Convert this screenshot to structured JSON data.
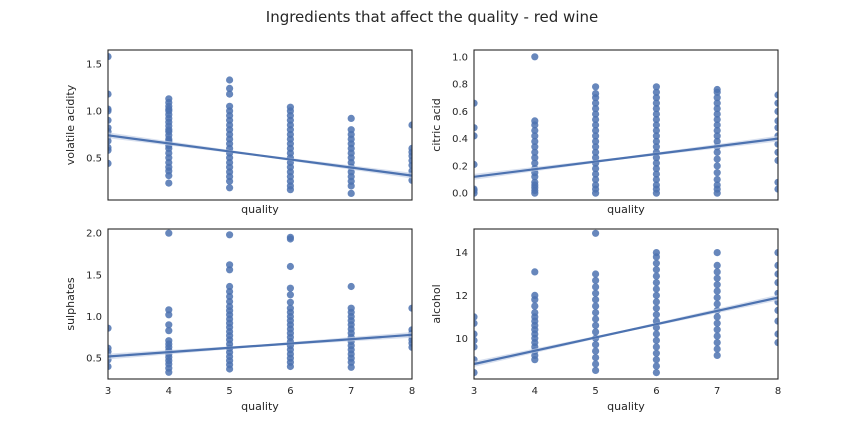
{
  "suptitle": "Ingredients that affect the quality - red wine",
  "colors": {
    "points": "#4c72b0",
    "line": "#4c72b0",
    "ci_band": "#c8d3e8",
    "axes": "#262626"
  },
  "chart_data": [
    {
      "type": "scatter",
      "xlabel": "quality",
      "ylabel": "volatile acidity",
      "xlim": [
        3,
        8
      ],
      "ylim": [
        0.05,
        1.65
      ],
      "yticks": [
        "0.5",
        "1.0",
        "1.5"
      ],
      "xticks": [],
      "regression": {
        "x": [
          3,
          8
        ],
        "y": [
          0.74,
          0.31
        ]
      },
      "groups": [
        {
          "x": 3,
          "y": [
            0.44,
            0.58,
            0.61,
            0.68,
            0.73,
            0.78,
            0.82,
            0.9,
            1.0,
            1.02,
            1.18,
            1.58
          ]
        },
        {
          "x": 4,
          "y": [
            0.23,
            0.31,
            0.36,
            0.4,
            0.45,
            0.5,
            0.55,
            0.6,
            0.63,
            0.66,
            0.68,
            0.7,
            0.74,
            0.78,
            0.8,
            0.84,
            0.88,
            0.92,
            0.96,
            1.0,
            1.02,
            1.05,
            1.09,
            1.13
          ]
        },
        {
          "x": 5,
          "y": [
            0.18,
            0.25,
            0.3,
            0.35,
            0.4,
            0.45,
            0.5,
            0.55,
            0.6,
            0.65,
            0.7,
            0.75,
            0.8,
            0.85,
            0.9,
            0.95,
            1.0,
            1.05,
            1.18,
            1.24,
            1.33
          ]
        },
        {
          "x": 6,
          "y": [
            0.16,
            0.2,
            0.25,
            0.3,
            0.35,
            0.4,
            0.45,
            0.5,
            0.55,
            0.6,
            0.65,
            0.7,
            0.75,
            0.8,
            0.85,
            0.9,
            0.95,
            1.0,
            1.04
          ]
        },
        {
          "x": 7,
          "y": [
            0.12,
            0.2,
            0.25,
            0.3,
            0.35,
            0.4,
            0.45,
            0.5,
            0.55,
            0.6,
            0.65,
            0.7,
            0.75,
            0.8,
            0.92
          ]
        },
        {
          "x": 8,
          "y": [
            0.26,
            0.32,
            0.36,
            0.42,
            0.47,
            0.52,
            0.56,
            0.6,
            0.85
          ]
        }
      ]
    },
    {
      "type": "scatter",
      "xlabel": "quality",
      "ylabel": "citric acid",
      "xlim": [
        3,
        8
      ],
      "ylim": [
        -0.05,
        1.05
      ],
      "yticks": [
        "0.0",
        "0.2",
        "0.4",
        "0.6",
        "0.8",
        "1.0"
      ],
      "xticks": [],
      "regression": {
        "x": [
          3,
          8
        ],
        "y": [
          0.12,
          0.4
        ]
      },
      "groups": [
        {
          "x": 3,
          "y": [
            0.0,
            0.02,
            0.03,
            0.21,
            0.42,
            0.48,
            0.66
          ]
        },
        {
          "x": 4,
          "y": [
            0.0,
            0.02,
            0.04,
            0.06,
            0.08,
            0.12,
            0.15,
            0.18,
            0.22,
            0.26,
            0.3,
            0.34,
            0.38,
            0.42,
            0.46,
            0.5,
            0.53,
            1.0
          ]
        },
        {
          "x": 5,
          "y": [
            0.0,
            0.03,
            0.06,
            0.1,
            0.14,
            0.18,
            0.22,
            0.26,
            0.3,
            0.34,
            0.38,
            0.42,
            0.46,
            0.5,
            0.54,
            0.58,
            0.62,
            0.66,
            0.7,
            0.73,
            0.78
          ]
        },
        {
          "x": 6,
          "y": [
            0.0,
            0.03,
            0.06,
            0.1,
            0.14,
            0.18,
            0.22,
            0.26,
            0.3,
            0.34,
            0.38,
            0.42,
            0.46,
            0.5,
            0.54,
            0.58,
            0.62,
            0.66,
            0.7,
            0.74,
            0.78
          ]
        },
        {
          "x": 7,
          "y": [
            0.0,
            0.03,
            0.06,
            0.1,
            0.15,
            0.2,
            0.25,
            0.3,
            0.34,
            0.38,
            0.42,
            0.46,
            0.5,
            0.54,
            0.58,
            0.62,
            0.66,
            0.7,
            0.74,
            0.76
          ]
        },
        {
          "x": 8,
          "y": [
            0.03,
            0.08,
            0.24,
            0.3,
            0.36,
            0.42,
            0.48,
            0.53,
            0.6,
            0.66,
            0.72
          ]
        }
      ]
    },
    {
      "type": "scatter",
      "xlabel": "quality",
      "ylabel": "sulphates",
      "xlim": [
        3,
        8
      ],
      "ylim": [
        0.25,
        2.05
      ],
      "yticks": [
        "0.5",
        "1.0",
        "1.5",
        "2.0"
      ],
      "xticks": [
        "3",
        "4",
        "5",
        "6",
        "7",
        "8"
      ],
      "regression": {
        "x": [
          3,
          8
        ],
        "y": [
          0.52,
          0.78
        ]
      },
      "groups": [
        {
          "x": 3,
          "y": [
            0.4,
            0.48,
            0.53,
            0.58,
            0.62,
            0.86
          ]
        },
        {
          "x": 4,
          "y": [
            0.33,
            0.38,
            0.43,
            0.47,
            0.51,
            0.55,
            0.59,
            0.63,
            0.67,
            0.71,
            0.83,
            0.9,
            1.02,
            1.08,
            2.0
          ]
        },
        {
          "x": 5,
          "y": [
            0.37,
            0.42,
            0.47,
            0.52,
            0.57,
            0.62,
            0.67,
            0.72,
            0.77,
            0.82,
            0.87,
            0.92,
            0.97,
            1.02,
            1.07,
            1.12,
            1.18,
            1.24,
            1.3,
            1.36,
            1.56,
            1.62,
            1.98
          ]
        },
        {
          "x": 6,
          "y": [
            0.4,
            0.45,
            0.5,
            0.55,
            0.6,
            0.65,
            0.7,
            0.75,
            0.8,
            0.85,
            0.9,
            0.95,
            1.0,
            1.05,
            1.1,
            1.17,
            1.26,
            1.34,
            1.6,
            1.93,
            1.95
          ]
        },
        {
          "x": 7,
          "y": [
            0.39,
            0.45,
            0.5,
            0.55,
            0.6,
            0.65,
            0.7,
            0.75,
            0.8,
            0.85,
            0.9,
            0.95,
            1.0,
            1.05,
            1.1,
            1.36
          ]
        },
        {
          "x": 8,
          "y": [
            0.63,
            0.68,
            0.72,
            0.76,
            0.8,
            0.84,
            1.1
          ]
        }
      ]
    },
    {
      "type": "scatter",
      "xlabel": "quality",
      "ylabel": "alcohol",
      "xlim": [
        3,
        8
      ],
      "ylim": [
        8.1,
        15.1
      ],
      "yticks": [
        "10",
        "12",
        "14"
      ],
      "xticks": [
        "3",
        "4",
        "5",
        "6",
        "7",
        "8"
      ],
      "regression": {
        "x": [
          3,
          8
        ],
        "y": [
          8.8,
          11.9
        ]
      },
      "groups": [
        {
          "x": 3,
          "y": [
            8.4,
            9.0,
            9.6,
            9.9,
            10.2,
            10.7,
            11.0
          ]
        },
        {
          "x": 4,
          "y": [
            9.0,
            9.2,
            9.4,
            9.6,
            9.8,
            10.0,
            10.2,
            10.4,
            10.6,
            10.8,
            11.0,
            11.2,
            11.5,
            11.8,
            12.0,
            13.1
          ]
        },
        {
          "x": 5,
          "y": [
            8.5,
            8.8,
            9.1,
            9.4,
            9.7,
            10.0,
            10.3,
            10.6,
            10.9,
            11.2,
            11.5,
            11.8,
            12.1,
            12.4,
            12.7,
            13.0,
            14.9
          ]
        },
        {
          "x": 6,
          "y": [
            8.4,
            8.7,
            9.0,
            9.3,
            9.6,
            9.9,
            10.2,
            10.5,
            10.8,
            11.1,
            11.4,
            11.7,
            12.0,
            12.3,
            12.6,
            12.9,
            13.2,
            13.5,
            13.8,
            14.0
          ]
        },
        {
          "x": 7,
          "y": [
            9.2,
            9.5,
            9.8,
            10.1,
            10.4,
            10.7,
            11.0,
            11.3,
            11.6,
            11.9,
            12.2,
            12.5,
            12.8,
            13.1,
            13.4,
            14.0
          ]
        },
        {
          "x": 8,
          "y": [
            9.8,
            10.2,
            10.8,
            11.3,
            11.7,
            12.1,
            12.6,
            13.0,
            13.4,
            14.0
          ]
        }
      ]
    }
  ]
}
